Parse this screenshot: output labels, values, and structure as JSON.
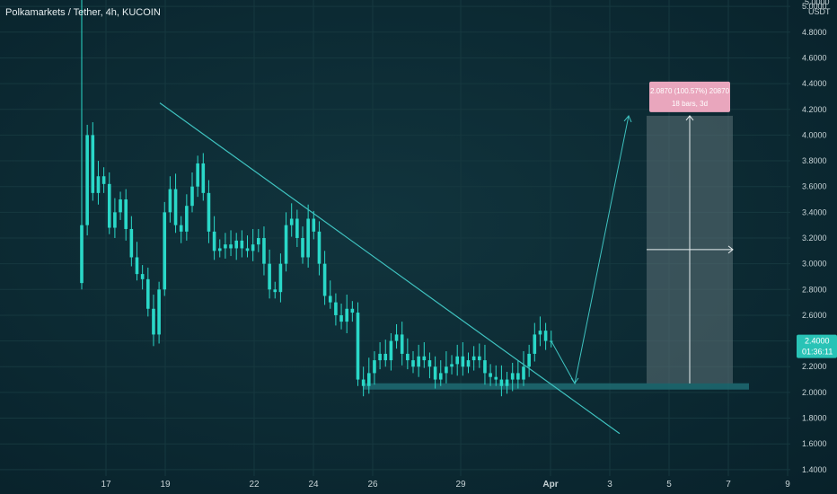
{
  "header": {
    "title": "Polkamarkets / Tether, 4h, KUCOIN"
  },
  "colors": {
    "background": "#0c2a33",
    "candle": "#2ad8c8",
    "trendline": "#3fc3c0",
    "support_zone": "#1f6b72",
    "target_box": "#5f7278",
    "label_bg": "#e9a6bd",
    "price_tag": "#29c3b6",
    "axis_text": "#c7d3d6"
  },
  "chart_data": {
    "type": "candlestick",
    "symbol": "Polkamarkets / Tether",
    "timeframe": "4h",
    "exchange": "KUCOIN",
    "y_unit": "USDT",
    "ylim": [
      1.35,
      5.05
    ],
    "y_ticks": [
      "5.0000",
      "4.8000",
      "4.6000",
      "4.4000",
      "4.2000",
      "4.0000",
      "3.8000",
      "3.6000",
      "3.4000",
      "3.2000",
      "3.0000",
      "2.8000",
      "2.6000",
      "2.4000",
      "2.2000",
      "2.0000",
      "1.8000",
      "1.6000",
      "1.4000"
    ],
    "x_ticks": [
      "17",
      "19",
      "22",
      "24",
      "26",
      "29",
      "Apr",
      "3",
      "5",
      "7",
      "9"
    ],
    "current_price": "2.4000",
    "countdown": "01:36:11",
    "closes": [
      3.3,
      4.0,
      3.55,
      3.68,
      3.62,
      3.28,
      3.4,
      3.5,
      3.27,
      3.05,
      2.92,
      2.88,
      2.65,
      2.45,
      2.8,
      3.4,
      3.58,
      3.3,
      3.25,
      3.45,
      3.6,
      3.78,
      3.55,
      3.25,
      3.1,
      3.12,
      3.15,
      3.12,
      3.18,
      3.12,
      3.1,
      3.15,
      3.2,
      3.0,
      2.8,
      2.78,
      3.0,
      3.3,
      3.35,
      3.2,
      3.05,
      3.35,
      3.25,
      3.0,
      2.75,
      2.7,
      2.6,
      2.55,
      2.65,
      2.62,
      2.1,
      2.05,
      2.15,
      2.25,
      2.3,
      2.25,
      2.4,
      2.45,
      2.3,
      2.25,
      2.2,
      2.28,
      2.25,
      2.2,
      2.1,
      2.15,
      2.2,
      2.22,
      2.28,
      2.2,
      2.25,
      2.28,
      2.25,
      2.15,
      2.12,
      2.1,
      2.05,
      2.1,
      2.15,
      2.1,
      2.2,
      2.3,
      2.45,
      2.48,
      2.4,
      2.4
    ],
    "annotations": {
      "descending_trendline": {
        "from": {
          "date": "Mar 19",
          "price": 4.25
        },
        "to": {
          "date": "Apr 3",
          "price": 1.68
        }
      },
      "support_zone": {
        "price": 2.05
      },
      "projection_path": {
        "via_price": 2.07,
        "target_price": 4.15,
        "target_date": "Apr 4"
      },
      "target_box": {
        "from_price": 2.07,
        "to_price": 4.15,
        "date_from": "Apr 4",
        "date_to": "Apr 7",
        "label_line1": "2.0870 (100.57%) 20870",
        "label_line2": "18 bars, 3d"
      }
    }
  }
}
